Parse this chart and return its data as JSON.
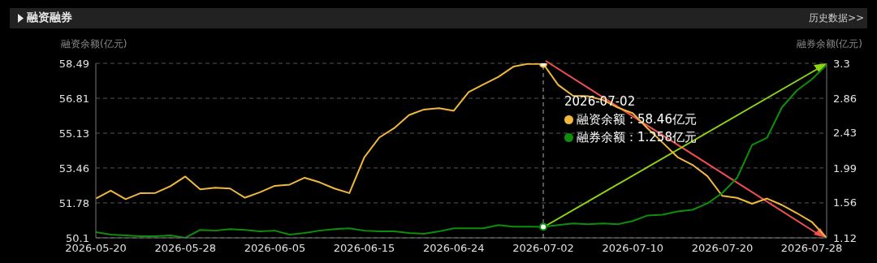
{
  "chart_data": {
    "type": "line",
    "title": "融资融券",
    "ylabel": "融资余额(亿元)",
    "y2label": "融券余额(亿元)",
    "categories": [
      "2026-05-20",
      null,
      null,
      null,
      null,
      null,
      "2026-05-28",
      null,
      null,
      null,
      null,
      null,
      "2026-06-05",
      null,
      null,
      null,
      null,
      null,
      "2026-06-15",
      null,
      null,
      null,
      null,
      null,
      "2026-06-24",
      null,
      null,
      null,
      null,
      null,
      "2026-07-02",
      null,
      null,
      null,
      null,
      null,
      "2026-07-10",
      null,
      null,
      null,
      null,
      null,
      "2026-07-20",
      null,
      null,
      null,
      null,
      null,
      "2026-07-28",
      null
    ],
    "series": [
      {
        "color": "#f0b83c",
        "values": [
          51.99,
          52.37,
          51.96,
          52.25,
          52.26,
          52.58,
          53.05,
          52.43,
          52.51,
          52.47,
          52.03,
          52.29,
          52.6,
          52.66,
          52.99,
          52.77,
          52.47,
          52.25,
          53.97,
          54.92,
          55.37,
          56.0,
          56.27,
          56.33,
          56.21,
          57.11,
          57.48,
          57.84,
          58.33,
          58.47,
          58.46,
          57.45,
          56.93,
          56.91,
          56.73,
          56.36,
          56.09,
          55.36,
          54.68,
          53.98,
          53.61,
          53.07,
          52.12,
          52.02,
          51.74,
          51.99,
          51.68,
          51.29,
          50.87,
          50.1
        ]
      },
      {
        "color": "#0b8f0b",
        "axis": "y2",
        "values": [
          1.19,
          1.16,
          1.15,
          1.14,
          1.14,
          1.15,
          1.12,
          1.22,
          1.21,
          1.23,
          1.22,
          1.2,
          1.21,
          1.16,
          1.18,
          1.21,
          1.23,
          1.24,
          1.21,
          1.2,
          1.2,
          1.18,
          1.17,
          1.2,
          1.24,
          1.24,
          1.24,
          1.28,
          1.26,
          1.26,
          1.258,
          1.28,
          1.3,
          1.29,
          1.3,
          1.29,
          1.33,
          1.4,
          1.41,
          1.45,
          1.47,
          1.55,
          1.68,
          1.87,
          2.28,
          2.37,
          2.75,
          2.96,
          3.1,
          3.28
        ]
      }
    ],
    "ylim": [
      50.1,
      58.49
    ],
    "yticks": [
      50.1,
      51.78,
      53.46,
      55.13,
      56.81,
      58.49
    ],
    "y2lim": [
      1.12,
      3.3
    ],
    "y2ticks": [
      1.12,
      1.56,
      1.99,
      2.43,
      2.86,
      3.3
    ],
    "grid": "y",
    "marker": "none",
    "line_style": "solid",
    "ref_lines": [
      {
        "axis": "x",
        "value": "2026-07-02",
        "color": "#aaaaaa",
        "line_style": "dashed"
      }
    ],
    "annotations": [
      "2026-07-02",
      "融资余额：58.46亿元",
      "融券余额：1.258亿元",
      "历史数据>>"
    ]
  }
}
